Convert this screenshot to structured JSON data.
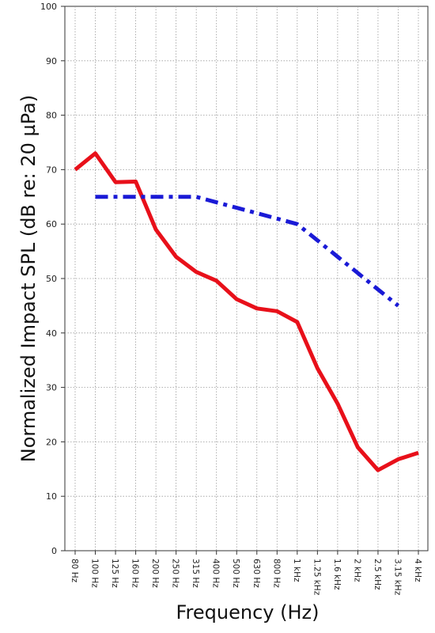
{
  "chart_data": {
    "type": "line",
    "xlabel": "Frequency (Hz)",
    "ylabel": "Normalized Impact SPL (dB re: 20 µPa)",
    "ylim": [
      0,
      100
    ],
    "yticks": [
      "0",
      "10",
      "20",
      "30",
      "40",
      "50",
      "60",
      "70",
      "80",
      "90",
      "100"
    ],
    "categories": [
      "80 Hz",
      "100 Hz",
      "125 Hz",
      "160 Hz",
      "200 Hz",
      "250 Hz",
      "315 Hz",
      "400 Hz",
      "500 Hz",
      "630 Hz",
      "800 Hz",
      "1 kHz",
      "1.25 kHz",
      "1.6 kHz",
      "2 kHz",
      "2.5 kHz",
      "3.15 kHz",
      "4 kHz"
    ],
    "grid": true,
    "series": [
      {
        "color": "#e8101a",
        "style": "solid",
        "values": [
          70,
          73,
          67.7,
          67.8,
          59,
          54,
          51.2,
          49.6,
          46.2,
          44.5,
          44,
          42,
          33.5,
          27,
          19,
          14.8,
          16.8,
          18
        ]
      },
      {
        "color": "#1a1ad6",
        "style": "dash-dot",
        "values": [
          null,
          65,
          65,
          65,
          65,
          65,
          65,
          64,
          63,
          62,
          61,
          60,
          57,
          54,
          51,
          48,
          45,
          null
        ]
      }
    ]
  }
}
